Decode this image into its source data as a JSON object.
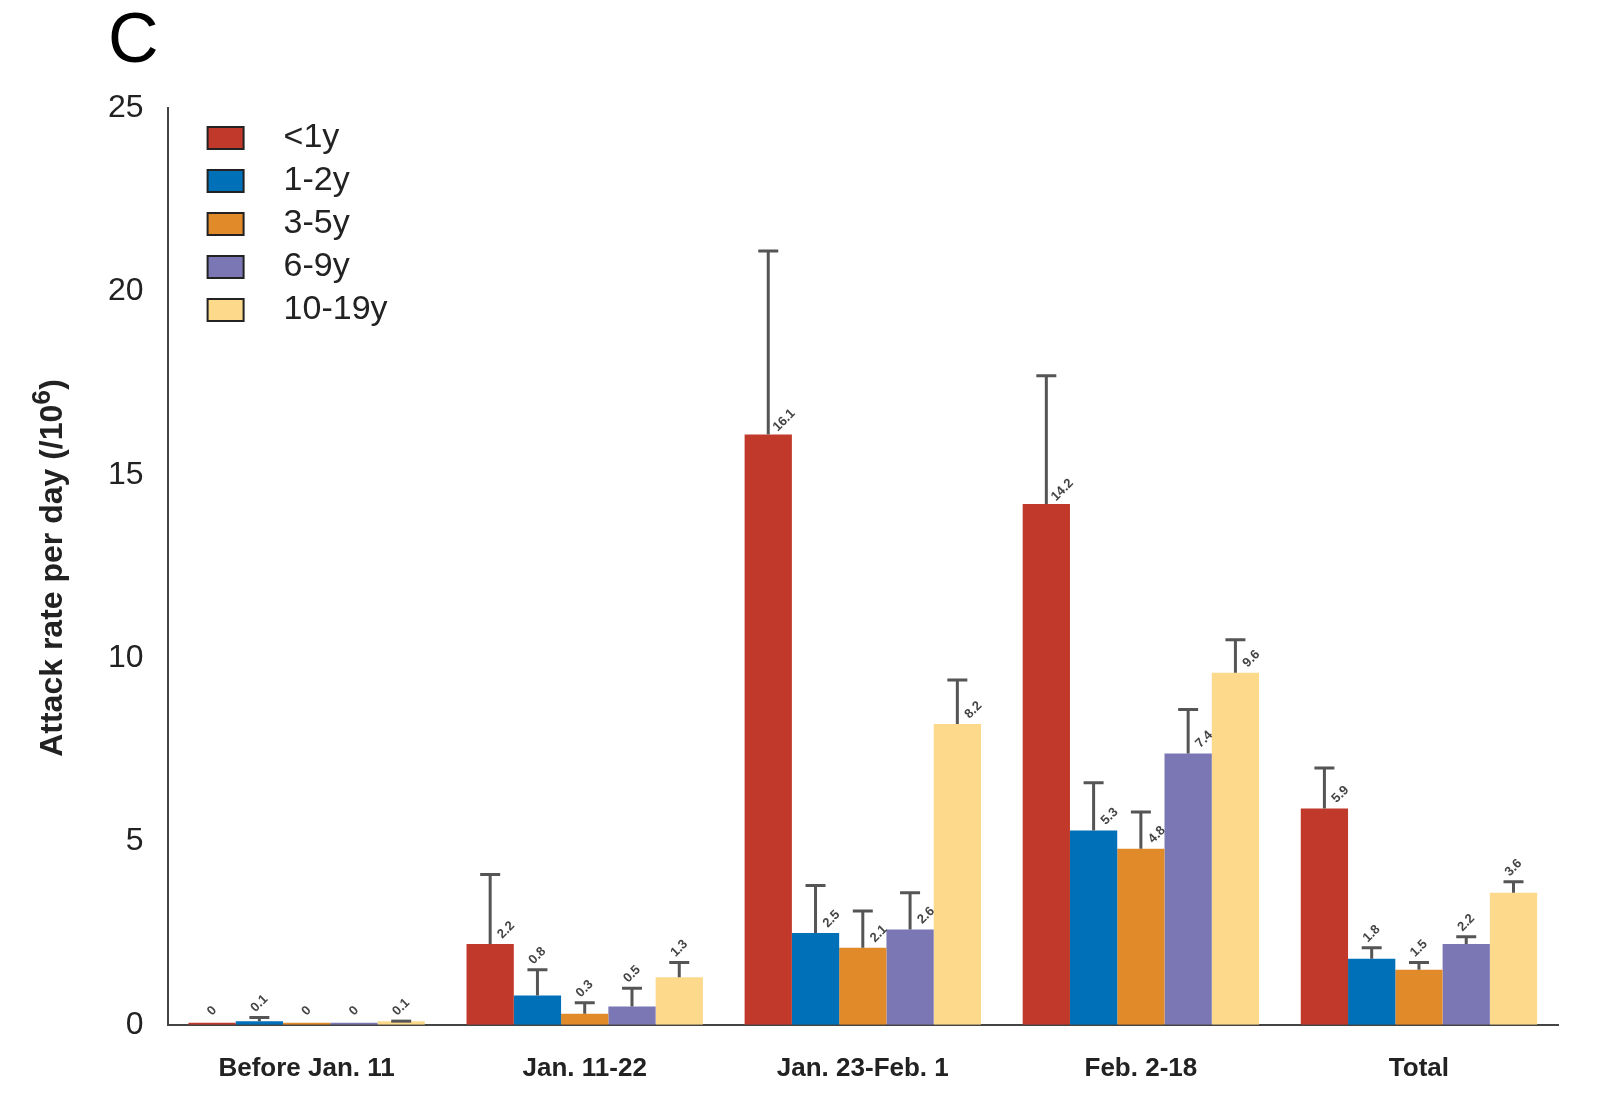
{
  "chart_data": {
    "type": "bar",
    "ylabel": "Attack rate per day (/10$^{6}$)",
    "annotations": [
      "C"
    ],
    "categories": [
      "Before Jan. 11",
      "Jan. 11-22",
      "Jan. 23-Feb. 1",
      "Feb. 2-18",
      "Total"
    ],
    "series": [
      {
        "name": "<1y",
        "color": "#c0392b",
        "values": [
          0,
          2.2,
          16.1,
          14.2,
          5.9
        ],
        "errors": [
          null,
          [
            2.2,
            4.1
          ],
          [
            16.1,
            21.1
          ],
          [
            14.2,
            17.7
          ],
          [
            5.9,
            7.0
          ]
        ]
      },
      {
        "name": "1-2y",
        "color": "#0070b8",
        "values": [
          0.1,
          0.8,
          2.5,
          5.3,
          1.8
        ],
        "errors": [
          [
            0.1,
            0.2
          ],
          [
            0.8,
            1.5
          ],
          [
            2.5,
            3.8
          ],
          [
            5.3,
            6.6
          ],
          [
            1.8,
            2.1
          ]
        ]
      },
      {
        "name": "3-5y",
        "color": "#e08a2a",
        "values": [
          0,
          0.3,
          2.1,
          4.8,
          1.5
        ],
        "errors": [
          null,
          [
            0.3,
            0.6
          ],
          [
            2.1,
            3.1
          ],
          [
            4.8,
            5.8
          ],
          [
            1.5,
            1.7
          ]
        ]
      },
      {
        "name": "6-9y",
        "color": "#7b77b5",
        "values": [
          0,
          0.5,
          2.6,
          7.4,
          2.2
        ],
        "errors": [
          null,
          [
            0.5,
            1.0
          ],
          [
            2.6,
            3.6
          ],
          [
            7.4,
            8.6
          ],
          [
            2.2,
            2.4
          ]
        ]
      },
      {
        "name": "10-19y",
        "color": "#fdd98c",
        "values": [
          0.1,
          1.3,
          8.2,
          9.6,
          3.6
        ],
        "errors": [
          [
            0.1,
            0.1
          ],
          [
            1.3,
            1.7
          ],
          [
            8.2,
            9.4
          ],
          [
            9.6,
            10.5
          ],
          [
            3.6,
            3.9
          ]
        ]
      }
    ],
    "ylim": [
      0,
      25
    ],
    "yticks": [
      0,
      5,
      10,
      15,
      20,
      25
    ],
    "grid": false,
    "legend": "top left",
    "data_labels": true
  }
}
